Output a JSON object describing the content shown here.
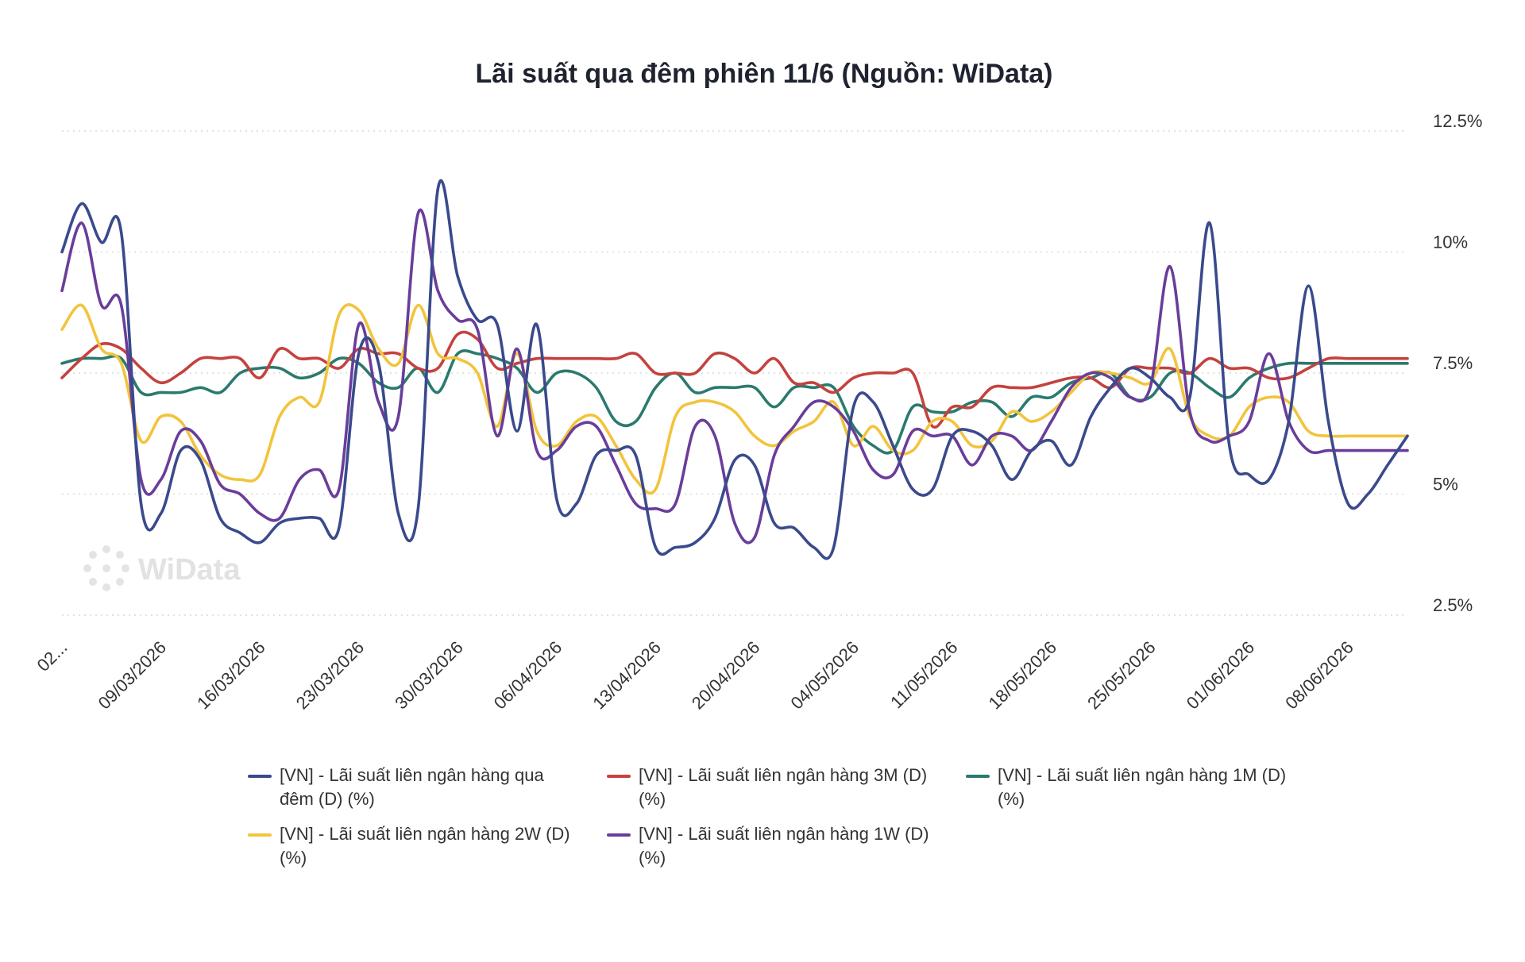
{
  "chart_data": {
    "type": "line",
    "title": "Lãi suất qua đêm phiên 11/6 (Nguồn: WiData)",
    "watermark": "WiData",
    "ylim": [
      2.5,
      12.5
    ],
    "yticks": [
      12.5,
      10,
      7.5,
      5,
      2.5
    ],
    "ytick_labels": [
      "12.5%",
      "10%",
      "7.5%",
      "5%",
      "2.5%"
    ],
    "y_axis_position": "right",
    "grid": true,
    "legend_position": "bottom",
    "x": [
      "02/03/2026",
      "03/03/2026",
      "04/03/2026",
      "05/03/2026",
      "06/03/2026",
      "09/03/2026",
      "10/03/2026",
      "11/03/2026",
      "12/03/2026",
      "13/03/2026",
      "16/03/2026",
      "17/03/2026",
      "18/03/2026",
      "19/03/2026",
      "20/03/2026",
      "23/03/2026",
      "24/03/2026",
      "25/03/2026",
      "26/03/2026",
      "27/03/2026",
      "30/03/2026",
      "31/03/2026",
      "01/04/2026",
      "02/04/2026",
      "03/04/2026",
      "06/04/2026",
      "07/04/2026",
      "08/04/2026",
      "09/04/2026",
      "10/04/2026",
      "13/04/2026",
      "14/04/2026",
      "15/04/2026",
      "16/04/2026",
      "17/04/2026",
      "20/04/2026",
      "21/04/2026",
      "22/04/2026",
      "23/04/2026",
      "24/04/2026",
      "04/05/2026",
      "05/05/2026",
      "06/05/2026",
      "07/05/2026",
      "08/05/2026",
      "11/05/2026",
      "12/05/2026",
      "13/05/2026",
      "14/05/2026",
      "15/05/2026",
      "18/05/2026",
      "19/05/2026",
      "20/05/2026",
      "21/05/2026",
      "22/05/2026",
      "25/05/2026",
      "26/05/2026",
      "27/05/2026",
      "28/05/2026",
      "29/05/2026",
      "01/06/2026",
      "02/06/2026",
      "03/06/2026",
      "04/06/2026",
      "05/06/2026",
      "08/06/2026",
      "09/06/2026",
      "10/06/2026",
      "11/06/2026"
    ],
    "x_tick_labels": [
      {
        "index": 0,
        "label": "02..."
      },
      {
        "index": 5,
        "label": "09/03/2026"
      },
      {
        "index": 10,
        "label": "16/03/2026"
      },
      {
        "index": 15,
        "label": "23/03/2026"
      },
      {
        "index": 20,
        "label": "30/03/2026"
      },
      {
        "index": 25,
        "label": "06/04/2026"
      },
      {
        "index": 30,
        "label": "13/04/2026"
      },
      {
        "index": 35,
        "label": "20/04/2026"
      },
      {
        "index": 40,
        "label": "04/05/2026"
      },
      {
        "index": 45,
        "label": "11/05/2026"
      },
      {
        "index": 50,
        "label": "18/05/2026"
      },
      {
        "index": 55,
        "label": "25/05/2026"
      },
      {
        "index": 60,
        "label": "01/06/2026"
      },
      {
        "index": 65,
        "label": "08/06/2026"
      }
    ],
    "series": [
      {
        "name": "[VN] - Lãi suất liên ngân hàng qua đêm (D) (%)",
        "color": "#3a4a8c",
        "values": [
          10.0,
          11.0,
          10.2,
          10.4,
          4.8,
          4.6,
          5.9,
          5.7,
          4.5,
          4.2,
          4.0,
          4.4,
          4.5,
          4.5,
          4.3,
          7.9,
          7.7,
          4.6,
          4.7,
          11.3,
          9.5,
          8.6,
          8.5,
          6.3,
          8.5,
          4.9,
          4.8,
          5.8,
          5.9,
          5.8,
          3.9,
          3.9,
          4.0,
          4.5,
          5.7,
          5.6,
          4.4,
          4.3,
          3.9,
          3.9,
          6.8,
          6.9,
          6.0,
          5.1,
          5.1,
          6.2,
          6.3,
          6.0,
          5.3,
          5.9,
          6.1,
          5.6,
          6.6,
          7.2,
          7.6,
          7.4,
          7.0,
          7.0,
          10.6,
          6.0,
          5.4,
          5.3,
          6.5,
          9.3,
          6.5,
          4.8,
          5.0,
          5.6,
          6.2
        ]
      },
      {
        "name": "[VN] - Lãi suất liên ngân hàng 3M (D) (%)",
        "color": "#c4423e",
        "values": [
          7.4,
          7.8,
          8.1,
          8.0,
          7.6,
          7.3,
          7.5,
          7.8,
          7.8,
          7.8,
          7.4,
          8.0,
          7.8,
          7.8,
          7.6,
          8.0,
          7.9,
          7.9,
          7.6,
          7.6,
          8.3,
          8.2,
          7.6,
          7.7,
          7.8,
          7.8,
          7.8,
          7.8,
          7.8,
          7.9,
          7.5,
          7.5,
          7.5,
          7.9,
          7.8,
          7.5,
          7.8,
          7.3,
          7.3,
          7.1,
          7.4,
          7.5,
          7.5,
          7.5,
          6.4,
          6.8,
          6.8,
          7.2,
          7.2,
          7.2,
          7.3,
          7.4,
          7.4,
          7.2,
          7.6,
          7.6,
          7.6,
          7.5,
          7.8,
          7.6,
          7.6,
          7.4,
          7.4,
          7.6,
          7.8,
          7.8,
          7.8,
          7.8,
          7.8
        ]
      },
      {
        "name": "[VN] - Lãi suất liên ngân hàng 1M (D) (%)",
        "color": "#2a7a6e",
        "values": [
          7.7,
          7.8,
          7.8,
          7.8,
          7.1,
          7.1,
          7.1,
          7.2,
          7.1,
          7.5,
          7.6,
          7.6,
          7.4,
          7.5,
          7.8,
          7.7,
          7.3,
          7.2,
          7.6,
          7.1,
          7.9,
          7.9,
          7.8,
          7.6,
          7.1,
          7.5,
          7.5,
          7.2,
          6.5,
          6.5,
          7.2,
          7.5,
          7.1,
          7.2,
          7.2,
          7.2,
          6.8,
          7.2,
          7.2,
          7.2,
          6.4,
          6.0,
          5.9,
          6.8,
          6.7,
          6.7,
          6.9,
          6.9,
          6.6,
          7.0,
          7.0,
          7.3,
          7.4,
          7.5,
          7.0,
          7.0,
          7.5,
          7.5,
          7.2,
          7.0,
          7.4,
          7.6,
          7.7,
          7.7,
          7.7,
          7.7,
          7.7,
          7.7,
          7.7
        ]
      },
      {
        "name": "[VN] - Lãi suất liên ngân hàng 2W (D) (%)",
        "color": "#f2c43c",
        "values": [
          8.4,
          8.9,
          8.0,
          7.7,
          6.1,
          6.6,
          6.5,
          5.8,
          5.4,
          5.3,
          5.4,
          6.6,
          7.0,
          6.9,
          8.7,
          8.8,
          8.0,
          7.7,
          8.9,
          7.9,
          7.8,
          7.5,
          6.4,
          7.9,
          6.3,
          6.0,
          6.5,
          6.6,
          6.0,
          5.3,
          5.1,
          6.6,
          6.9,
          6.9,
          6.7,
          6.2,
          6.0,
          6.3,
          6.5,
          6.9,
          6.0,
          6.4,
          5.9,
          5.9,
          6.5,
          6.5,
          6.0,
          6.1,
          6.7,
          6.5,
          6.7,
          7.1,
          7.5,
          7.5,
          7.4,
          7.3,
          8.0,
          6.6,
          6.2,
          6.2,
          6.8,
          7.0,
          6.9,
          6.3,
          6.2,
          6.2,
          6.2,
          6.2,
          6.2
        ]
      },
      {
        "name": "[VN] - Lãi suất liên ngân hàng 1W (D) (%)",
        "color": "#6a3d9a",
        "values": [
          9.2,
          10.6,
          8.9,
          8.9,
          5.3,
          5.3,
          6.3,
          6.1,
          5.2,
          5.0,
          4.6,
          4.5,
          5.3,
          5.5,
          5.1,
          8.5,
          6.9,
          6.6,
          10.8,
          9.2,
          8.6,
          8.4,
          6.2,
          8.0,
          5.9,
          5.9,
          6.4,
          6.4,
          5.6,
          4.8,
          4.7,
          4.8,
          6.4,
          6.2,
          4.4,
          4.1,
          5.8,
          6.4,
          6.9,
          6.8,
          6.3,
          5.5,
          5.4,
          6.3,
          6.2,
          6.2,
          5.6,
          6.2,
          6.2,
          5.9,
          6.5,
          7.2,
          7.5,
          7.4,
          7.0,
          7.2,
          9.7,
          6.7,
          6.1,
          6.2,
          6.5,
          7.9,
          6.5,
          5.9,
          5.9,
          5.9,
          5.9,
          5.9,
          5.9
        ]
      }
    ]
  }
}
